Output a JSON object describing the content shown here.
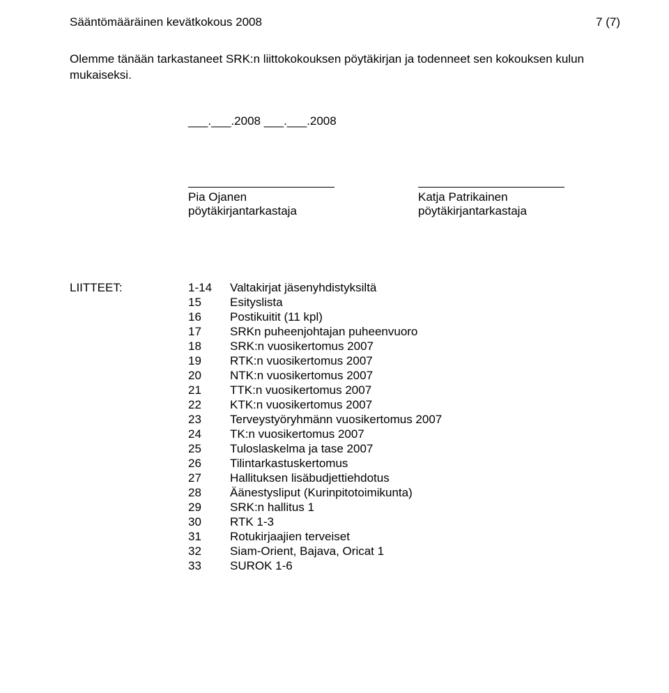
{
  "header": {
    "title": "Sääntömääräinen kevätkokous 2008",
    "page_label": "7 (7)"
  },
  "intro": "Olemme tänään tarkastaneet SRK:n liittokokouksen pöytäkirjan ja todenneet sen kokouksen kulun mukaiseksi.",
  "date_line": "___.___.2008    ___.___.2008",
  "signatures": [
    {
      "name": "Pia Ojanen",
      "role": "pöytäkirjantarkastaja"
    },
    {
      "name": "Katja Patrikainen",
      "role": "pöytäkirjantarkastaja"
    }
  ],
  "attachments": {
    "label": "LIITTEET:",
    "items": [
      {
        "num": "1-14",
        "text": "Valtakirjat jäsenyhdistyksiltä"
      },
      {
        "num": "15",
        "text": "Esityslista"
      },
      {
        "num": "16",
        "text": "Postikuitit (11 kpl)"
      },
      {
        "num": "17",
        "text": "SRKn puheenjohtajan puheenvuoro"
      },
      {
        "num": "18",
        "text": "SRK:n vuosikertomus 2007"
      },
      {
        "num": "19",
        "text": "RTK:n vuosikertomus 2007"
      },
      {
        "num": "20",
        "text": "NTK:n vuosikertomus 2007"
      },
      {
        "num": "21",
        "text": "TTK:n vuosikertomus 2007"
      },
      {
        "num": "22",
        "text": "KTK:n vuosikertomus 2007"
      },
      {
        "num": "23",
        "text": "Terveystyöryhmänn vuosikertomus 2007"
      },
      {
        "num": "24",
        "text": "TK:n vuosikertomus 2007"
      },
      {
        "num": "25",
        "text": "Tuloslaskelma ja tase 2007"
      },
      {
        "num": "26",
        "text": "Tilintarkastuskertomus"
      },
      {
        "num": "27",
        "text": "Hallituksen lisäbudjettiehdotus"
      },
      {
        "num": "28",
        "text": "Äänestysliput (Kurinpitotoimikunta)"
      },
      {
        "num": "29",
        "text": "SRK:n hallitus 1"
      },
      {
        "num": "30",
        "text": "RTK 1-3"
      },
      {
        "num": "31",
        "text": "Rotukirjaajien terveiset"
      },
      {
        "num": "32",
        "text": "Siam-Orient, Bajava, Oricat 1"
      },
      {
        "num": "33",
        "text": "SUROK 1-6"
      }
    ]
  }
}
